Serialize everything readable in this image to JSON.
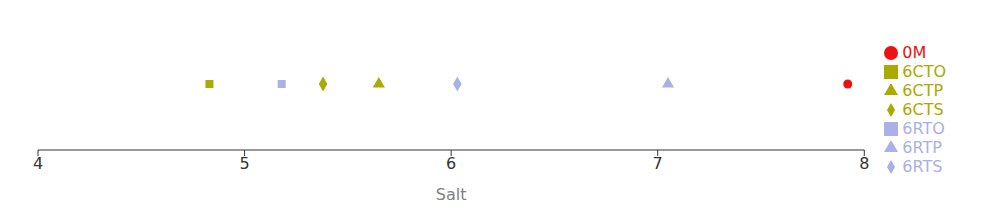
{
  "chart_data": {
    "type": "scatter",
    "xlabel": "Salt",
    "xlim": [
      4,
      8
    ],
    "xticks": [
      4,
      5,
      6,
      7,
      8
    ],
    "legend": "right",
    "series": [
      {
        "name": "0M",
        "color": "#ee1111",
        "marker": "circle",
        "x": [
          7.92
        ]
      },
      {
        "name": "6RTO",
        "color": "#aab0e8",
        "marker": "square",
        "x": [
          5.18
        ]
      },
      {
        "name": "6RTP",
        "color": "#aab0e8",
        "marker": "triangle",
        "x": [
          7.05
        ]
      },
      {
        "name": "6RTS",
        "color": "#aab0e8",
        "marker": "diamond",
        "x": [
          6.03
        ]
      },
      {
        "name": "6CTO",
        "color": "#aaaa00",
        "marker": "square",
        "x": [
          4.83
        ]
      },
      {
        "name": "6CTP",
        "color": "#aaaa00",
        "marker": "triangle",
        "x": [
          5.65
        ]
      },
      {
        "name": "6CTS",
        "color": "#aaaa00",
        "marker": "diamond",
        "x": [
          5.38
        ]
      }
    ]
  }
}
